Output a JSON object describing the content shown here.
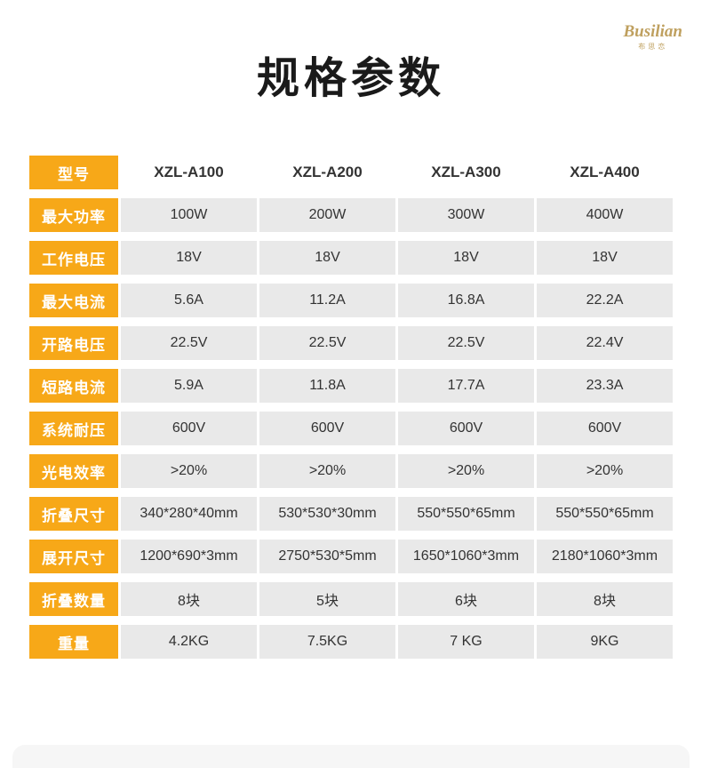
{
  "logo": {
    "name": "Busilian",
    "subtext": "布思恋"
  },
  "title": "规格参数",
  "colors": {
    "header_yellow": "#F7A818",
    "cell_gray": "#E9E9E9",
    "text_dark": "#333333",
    "logo_gold": "#BFA05F"
  },
  "table": {
    "rows": [
      {
        "label": "型号",
        "header_row": true,
        "values": [
          "XZL-A100",
          "XZL-A200",
          "XZL-A300",
          "XZL-A400"
        ]
      },
      {
        "label": "最大功率",
        "header_row": false,
        "values": [
          "100W",
          "200W",
          "300W",
          "400W"
        ]
      },
      {
        "label": "工作电压",
        "header_row": false,
        "values": [
          "18V",
          "18V",
          "18V",
          "18V"
        ]
      },
      {
        "label": "最大电流",
        "header_row": false,
        "values": [
          "5.6A",
          "11.2A",
          "16.8A",
          "22.2A"
        ]
      },
      {
        "label": "开路电压",
        "header_row": false,
        "values": [
          "22.5V",
          "22.5V",
          "22.5V",
          "22.4V"
        ]
      },
      {
        "label": "短路电流",
        "header_row": false,
        "values": [
          "5.9A",
          "11.8A",
          "17.7A",
          "23.3A"
        ]
      },
      {
        "label": "系统耐压",
        "header_row": false,
        "values": [
          "600V",
          "600V",
          "600V",
          "600V"
        ]
      },
      {
        "label": "光电效率",
        "header_row": false,
        "values": [
          ">20%",
          ">20%",
          ">20%",
          ">20%"
        ]
      },
      {
        "label": "折叠尺寸",
        "header_row": false,
        "values": [
          "340*280*40mm",
          "530*530*30mm",
          "550*550*65mm",
          "550*550*65mm"
        ]
      },
      {
        "label": "展开尺寸",
        "header_row": false,
        "values": [
          "1200*690*3mm",
          "2750*530*5mm",
          "1650*1060*3mm",
          "2180*1060*3mm"
        ]
      },
      {
        "label": "折叠数量",
        "header_row": false,
        "values": [
          "8块",
          "5块",
          "6块",
          "8块"
        ]
      },
      {
        "label": "重量",
        "header_row": false,
        "values": [
          "4.2KG",
          "7.5KG",
          "7 KG",
          "9KG"
        ]
      }
    ]
  }
}
